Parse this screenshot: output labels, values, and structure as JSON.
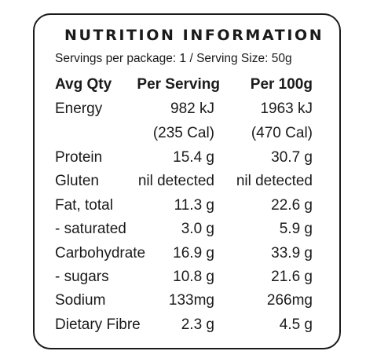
{
  "title": "NUTRITION INFORMATION",
  "serving_line": "Servings per package: 1 / Serving Size: 50g",
  "headers": {
    "quantity": "Avg Qty",
    "per_serving": "Per Serving",
    "per_100g": "Per 100g"
  },
  "rows": [
    {
      "label": "Energy",
      "per_serving": "982 kJ",
      "per_100g": "1963 kJ"
    },
    {
      "label": "",
      "per_serving": "(235 Cal)",
      "per_100g": "(470 Cal)"
    },
    {
      "label": "Protein",
      "per_serving": "15.4 g",
      "per_100g": "30.7 g"
    },
    {
      "label": "Gluten",
      "per_serving": "nil detected",
      "per_100g": "nil detected"
    },
    {
      "label": "Fat, total",
      "per_serving": "11.3 g",
      "per_100g": "22.6 g"
    },
    {
      "label": "- saturated",
      "per_serving": "3.0 g",
      "per_100g": "5.9 g"
    },
    {
      "label": "Carbohydrate",
      "per_serving": "16.9 g",
      "per_100g": "33.9 g"
    },
    {
      "label": "- sugars",
      "per_serving": "10.8 g",
      "per_100g": "21.6 g"
    },
    {
      "label": "Sodium",
      "per_serving": "133mg",
      "per_100g": "266mg"
    },
    {
      "label": "Dietary Fibre",
      "per_serving": "2.3 g",
      "per_100g": "4.5 g"
    }
  ]
}
